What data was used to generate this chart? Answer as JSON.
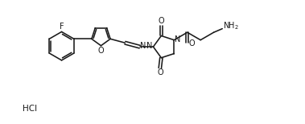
{
  "bg_color": "#ffffff",
  "line_color": "#1a1a1a",
  "line_width": 1.15,
  "font_size": 7.0,
  "fig_width": 3.79,
  "fig_height": 1.54,
  "dpi": 100,
  "xlim": [
    0,
    10.5
  ],
  "ylim": [
    -1.8,
    3.2
  ]
}
